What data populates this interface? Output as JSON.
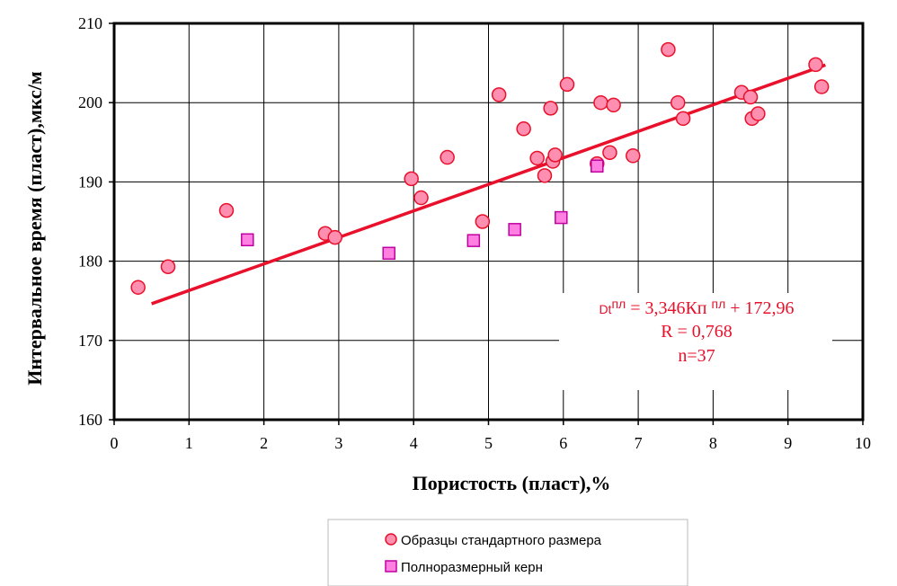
{
  "chart_data": {
    "type": "scatter",
    "title": "",
    "xlabel": "Пористость  (пласт),%",
    "ylabel": "Интервальное  время (пласт),мкс/м",
    "xlim": [
      0,
      10
    ],
    "ylim": [
      160,
      210
    ],
    "x_ticks": [
      "0",
      "1",
      "2",
      "3",
      "4",
      "5",
      "6",
      "7",
      "8",
      "9",
      "10"
    ],
    "y_ticks": [
      "160",
      "170",
      "180",
      "190",
      "200",
      "210"
    ],
    "grid": "vertical-and-horizontal",
    "legend_position": "bottom-center",
    "series": [
      {
        "name": "Образцы стандартного размера",
        "marker": "circle",
        "color": "#ff8fb0",
        "edge_color": "#e8102a",
        "points": [
          [
            0.32,
            176.7
          ],
          [
            0.72,
            179.3
          ],
          [
            1.5,
            186.4
          ],
          [
            2.82,
            183.5
          ],
          [
            2.95,
            183.0
          ],
          [
            3.97,
            190.4
          ],
          [
            4.1,
            188.0
          ],
          [
            4.45,
            193.1
          ],
          [
            4.92,
            185.0
          ],
          [
            5.14,
            201.0
          ],
          [
            5.47,
            196.7
          ],
          [
            5.65,
            193.0
          ],
          [
            5.75,
            190.8
          ],
          [
            5.83,
            199.3
          ],
          [
            5.86,
            192.6
          ],
          [
            5.89,
            193.4
          ],
          [
            6.05,
            202.3
          ],
          [
            6.5,
            200.0
          ],
          [
            6.45,
            192.3
          ],
          [
            6.62,
            193.7
          ],
          [
            6.67,
            199.7
          ],
          [
            6.93,
            193.3
          ],
          [
            7.4,
            206.7
          ],
          [
            7.53,
            200.0
          ],
          [
            7.6,
            198.0
          ],
          [
            8.38,
            201.3
          ],
          [
            8.5,
            200.7
          ],
          [
            8.52,
            198.0
          ],
          [
            8.6,
            198.6
          ],
          [
            9.37,
            204.8
          ],
          [
            9.45,
            202.0
          ]
        ]
      },
      {
        "name": "Полноразмерный керн",
        "marker": "square",
        "color": "#ff80e0",
        "edge_color": "#c000a0",
        "points": [
          [
            1.78,
            182.7
          ],
          [
            3.67,
            181.0
          ],
          [
            4.8,
            182.6
          ],
          [
            5.35,
            184.0
          ],
          [
            5.97,
            185.5
          ],
          [
            6.45,
            192.0
          ]
        ]
      }
    ],
    "trendline": {
      "color": "#e8102a",
      "slope": 3.346,
      "intercept": 172.96,
      "x_range": [
        0.5,
        9.5
      ]
    },
    "annotation": {
      "equation_prefix": "Dt",
      "equation_sup1": "пл",
      "equation_mid": " = 3,346Кп ",
      "equation_sup2": "пл",
      "equation_end": " + 172,96",
      "r": "R = 0,768",
      "n": "n=37"
    }
  }
}
